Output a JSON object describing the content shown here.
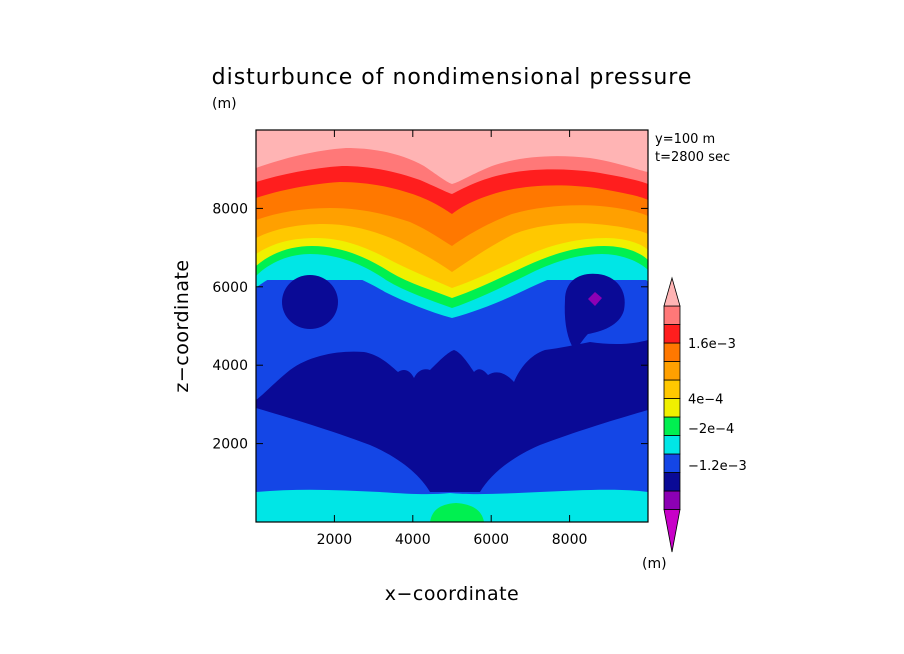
{
  "chart_data": {
    "type": "heatmap",
    "title": "disturbunce of nondimensional pressure",
    "title_unit": "(m)",
    "xlabel": "x−coordinate",
    "ylabel": "z−coordinate",
    "xlim": [
      0,
      10000
    ],
    "ylim": [
      0,
      10000
    ],
    "x_ticks": [
      "2000",
      "4000",
      "6000",
      "8000"
    ],
    "x_tick_values": [
      2000,
      4000,
      6000,
      8000
    ],
    "y_ticks": [
      "2000",
      "4000",
      "6000",
      "8000"
    ],
    "y_tick_values": [
      2000,
      4000,
      6000,
      8000
    ],
    "x_unit": "(m)",
    "annotations": [
      "y=100 m",
      "t=2800 sec"
    ],
    "colorbar": {
      "levels_ascending": [
        {
          "color": "#c800c8"
        },
        {
          "color": "#8c00b4"
        },
        {
          "color": "#0a0a96"
        },
        {
          "color": "#1446e6"
        },
        {
          "color": "#00e6e6"
        },
        {
          "color": "#00f050"
        },
        {
          "color": "#f0f000"
        },
        {
          "color": "#ffc800"
        },
        {
          "color": "#ffa000"
        },
        {
          "color": "#ff7800"
        },
        {
          "color": "#ff1e1e"
        },
        {
          "color": "#ff7878"
        },
        {
          "color": "#ffb4b4"
        }
      ],
      "labels": [
        {
          "text": "1.6e−3",
          "value": 0.0016
        },
        {
          "text": "4e−4",
          "value": 0.0004
        },
        {
          "text": "−2e−4",
          "value": -0.0002
        },
        {
          "text": "−1.2e−3",
          "value": -0.0012
        }
      ]
    }
  }
}
